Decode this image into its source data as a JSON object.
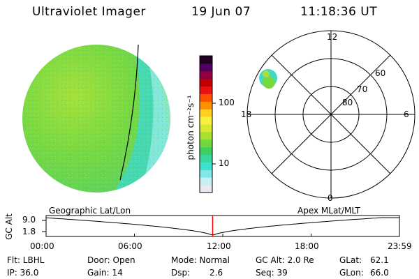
{
  "header": {
    "instrument": "Ultraviolet Imager",
    "date": "19 Jun 07",
    "time": "11:18:36 UT"
  },
  "colorbar": {
    "unit_label": "photon cm⁻²s⁻¹",
    "ticks": [
      "100",
      "10"
    ],
    "ticks_values": [
      100,
      10
    ],
    "range": [
      2,
      600
    ],
    "scale": "log",
    "colors": [
      "#e8e8f0",
      "#c8f0f0",
      "#80e8e8",
      "#40e0d0",
      "#38d8a0",
      "#40d060",
      "#70d840",
      "#a8e030",
      "#d8e830",
      "#f8f040",
      "#ffd020",
      "#ff9000",
      "#ff5000",
      "#e81010",
      "#c00000",
      "#900040",
      "#500060",
      "#200020"
    ]
  },
  "polar_grid": {
    "mlt_labels": [
      "12",
      "18",
      "6",
      "0"
    ],
    "mlat_labels": [
      "60",
      "70",
      "80"
    ],
    "mlat_values": [
      60,
      70,
      80
    ]
  },
  "timeline": {
    "left_label": "Geographic Lat/Lon",
    "right_label": "Apex MLat/MLT",
    "y_axis_label": "GC Alt",
    "y_ticks": [
      "9.0",
      "1.8"
    ],
    "x_ticks": [
      "00:00",
      "06:00",
      "12:00",
      "18:00",
      "23:59"
    ],
    "x_hours": [
      0,
      6,
      12,
      18,
      24
    ],
    "current_hour": 11.31,
    "marker_color": "#ff0000"
  },
  "info": {
    "flt": "Flt: LBHL",
    "ip": "IP: 36.0",
    "door": "Door: Open",
    "gain": "Gain: 14",
    "mode": "Mode: Normal",
    "dsp_label": "Dsp:",
    "dsp_value": "2.6",
    "gc_alt": "GC Alt: 2.0 Re",
    "seq": "Seq: 39",
    "glat_label": "GLat:",
    "glat_value": "62.1",
    "glon_label": "GLon:",
    "glon_value": "66.0"
  }
}
